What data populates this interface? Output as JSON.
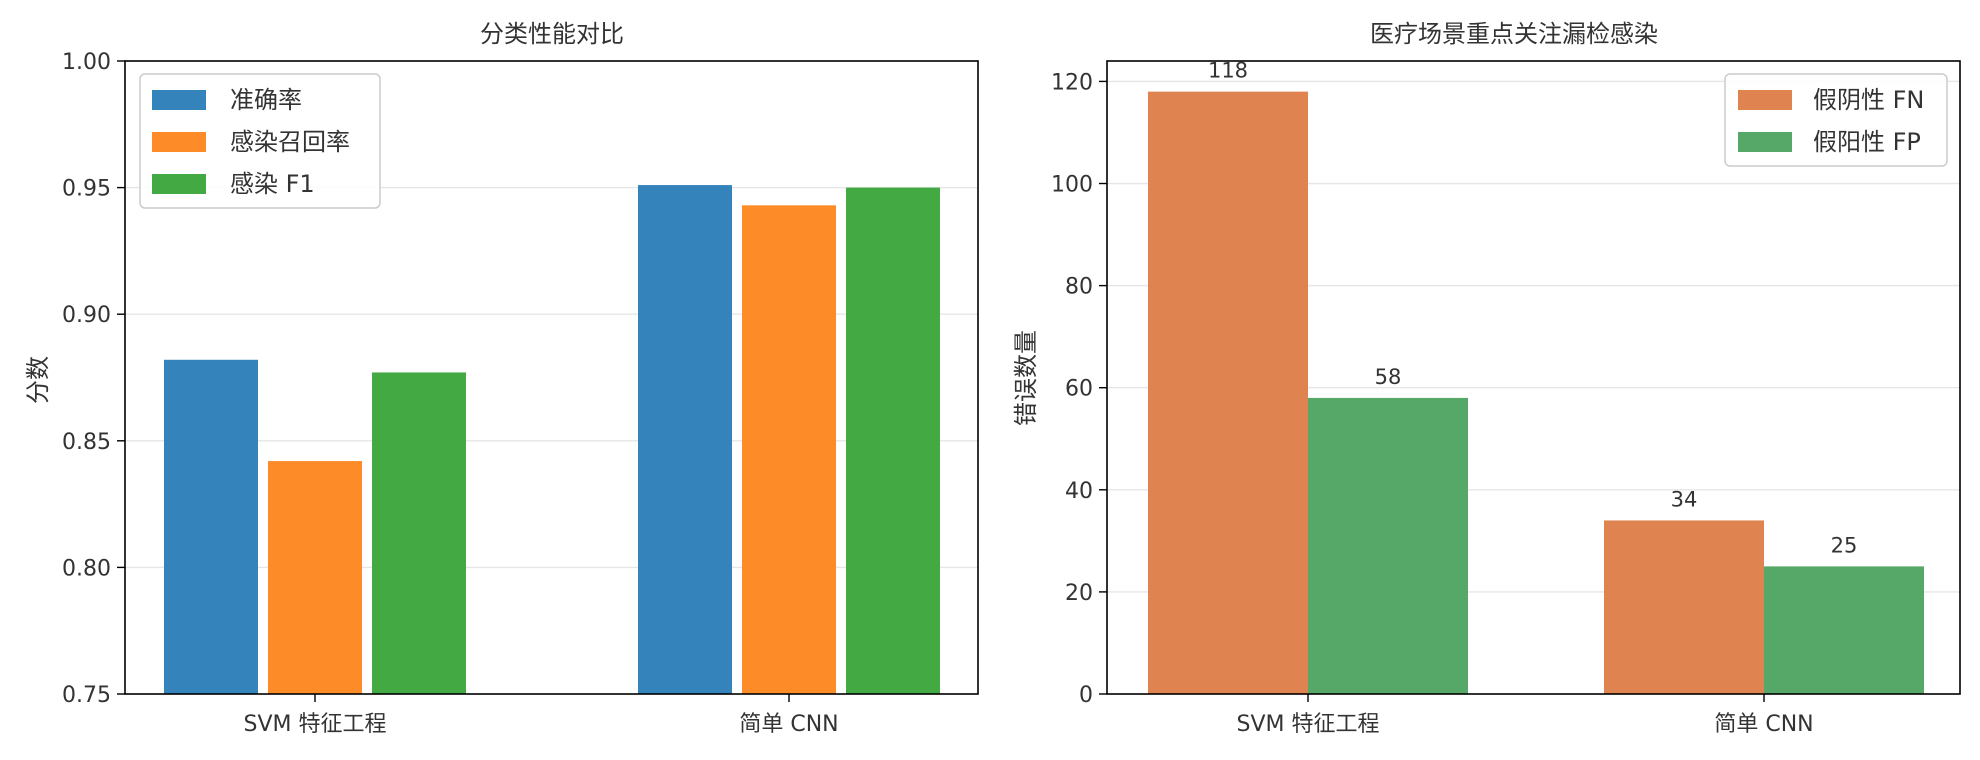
{
  "chart_data": [
    {
      "type": "bar",
      "title": "分类性能对比",
      "xlabel": "",
      "ylabel": "分数",
      "ylim": [
        0.75,
        1.0
      ],
      "yticks": [
        "0.75",
        "0.80",
        "0.85",
        "0.90",
        "0.95",
        "1.00"
      ],
      "grid": "horizontal",
      "legend_position": "top-left",
      "categories": [
        "SVM 特征工程",
        "简单 CNN"
      ],
      "series": [
        {
          "name": "准确率",
          "color": "#3583bb",
          "values": [
            0.882,
            0.951
          ]
        },
        {
          "name": "感染召回率",
          "color": "#fd8b28",
          "values": [
            0.842,
            0.943
          ]
        },
        {
          "name": "感染 F1",
          "color": "#43aa43",
          "values": [
            0.877,
            0.95
          ]
        }
      ]
    },
    {
      "type": "bar",
      "title": "医疗场景重点关注漏检感染",
      "xlabel": "",
      "ylabel": "错误数量",
      "ylim": [
        0,
        124
      ],
      "yticks": [
        "0",
        "20",
        "40",
        "60",
        "80",
        "100",
        "120"
      ],
      "grid": "horizontal",
      "legend_position": "top-right",
      "categories": [
        "SVM 特征工程",
        "简单 CNN"
      ],
      "data_labels": true,
      "series": [
        {
          "name": "假阴性 FN",
          "color": "#df8451",
          "values": [
            118,
            34
          ]
        },
        {
          "name": "假阳性 FP",
          "color": "#55a867",
          "values": [
            58,
            25
          ]
        }
      ]
    }
  ]
}
